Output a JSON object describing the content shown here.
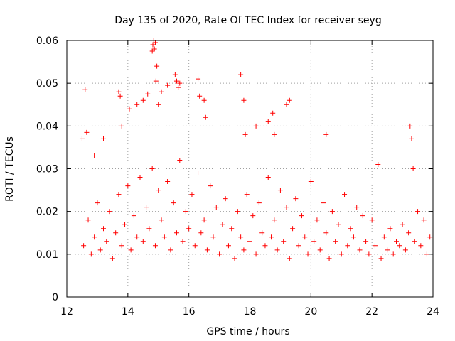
{
  "chart_data": {
    "type": "scatter",
    "title": "Day 135 of 2020, Rate Of TEC Index for receiver seyg",
    "xlabel": "GPS time / hours",
    "ylabel": "ROTI / TECUs",
    "xlim": [
      12,
      24
    ],
    "ylim": [
      0,
      0.06
    ],
    "x_ticks": [
      "12",
      "14",
      "16",
      "18",
      "20",
      "22",
      "24"
    ],
    "y_ticks": [
      "0",
      "0.01",
      "0.02",
      "0.03",
      "0.04",
      "0.05",
      "0.06"
    ],
    "grid": true,
    "marker": "plus",
    "point_color": "#ff0000",
    "series": [
      {
        "x": [
          12.5,
          12.6,
          12.65,
          12.9,
          13.2,
          13.7,
          13.75,
          13.8,
          14.05,
          14.3,
          14.5,
          14.65,
          14.8,
          14.82,
          14.85,
          14.87,
          14.9,
          14.92,
          14.95,
          15.0,
          15.1,
          15.3,
          15.55,
          15.6,
          15.65,
          15.7,
          16.3,
          16.35,
          16.5,
          16.55,
          17.7,
          17.8,
          17.85,
          18.2,
          18.6,
          18.75,
          18.8,
          19.2,
          19.3,
          20.5,
          22.2,
          23.25,
          23.3,
          23.35,
          12.55,
          12.7,
          12.8,
          12.9,
          13.0,
          13.1,
          13.2,
          13.3,
          13.4,
          13.5,
          13.6,
          13.7,
          13.8,
          13.9,
          14.0,
          14.1,
          14.2,
          14.3,
          14.4,
          14.5,
          14.6,
          14.7,
          14.8,
          14.9,
          15.0,
          15.1,
          15.2,
          15.3,
          15.4,
          15.5,
          15.6,
          15.7,
          15.8,
          15.9,
          16.0,
          16.1,
          16.2,
          16.3,
          16.4,
          16.5,
          16.6,
          16.7,
          16.8,
          16.9,
          17.0,
          17.1,
          17.2,
          17.3,
          17.4,
          17.5,
          17.6,
          17.7,
          17.8,
          17.9,
          18.0,
          18.1,
          18.2,
          18.3,
          18.4,
          18.5,
          18.6,
          18.7,
          18.8,
          18.9,
          19.0,
          19.1,
          19.2,
          19.3,
          19.4,
          19.5,
          19.6,
          19.7,
          19.8,
          19.9,
          20.0,
          20.1,
          20.2,
          20.3,
          20.4,
          20.5,
          20.6,
          20.7,
          20.8,
          20.9,
          21.0,
          21.1,
          21.2,
          21.3,
          21.4,
          21.5,
          21.6,
          21.7,
          21.8,
          21.9,
          22.0,
          22.1,
          22.3,
          22.4,
          22.5,
          22.6,
          22.7,
          22.8,
          22.9,
          23.0,
          23.1,
          23.2,
          23.4,
          23.5,
          23.6,
          23.7,
          23.8,
          23.9
        ],
        "y": [
          0.037,
          0.0485,
          0.0385,
          0.033,
          0.037,
          0.048,
          0.047,
          0.04,
          0.044,
          0.045,
          0.046,
          0.0475,
          0.0575,
          0.059,
          0.06,
          0.058,
          0.0595,
          0.0505,
          0.054,
          0.045,
          0.048,
          0.0495,
          0.052,
          0.0505,
          0.049,
          0.05,
          0.051,
          0.047,
          0.046,
          0.042,
          0.052,
          0.046,
          0.038,
          0.04,
          0.041,
          0.043,
          0.038,
          0.045,
          0.046,
          0.038,
          0.031,
          0.04,
          0.037,
          0.03,
          0.012,
          0.018,
          0.01,
          0.014,
          0.022,
          0.011,
          0.016,
          0.013,
          0.02,
          0.009,
          0.015,
          0.024,
          0.012,
          0.017,
          0.026,
          0.011,
          0.019,
          0.014,
          0.028,
          0.013,
          0.021,
          0.016,
          0.03,
          0.012,
          0.025,
          0.018,
          0.014,
          0.027,
          0.011,
          0.022,
          0.015,
          0.032,
          0.013,
          0.02,
          0.016,
          0.024,
          0.012,
          0.029,
          0.015,
          0.018,
          0.011,
          0.026,
          0.014,
          0.021,
          0.01,
          0.017,
          0.023,
          0.012,
          0.016,
          0.009,
          0.02,
          0.014,
          0.011,
          0.024,
          0.013,
          0.019,
          0.01,
          0.022,
          0.015,
          0.012,
          0.028,
          0.014,
          0.018,
          0.011,
          0.025,
          0.013,
          0.021,
          0.009,
          0.016,
          0.023,
          0.012,
          0.019,
          0.014,
          0.01,
          0.027,
          0.013,
          0.018,
          0.011,
          0.022,
          0.015,
          0.009,
          0.02,
          0.013,
          0.017,
          0.01,
          0.024,
          0.012,
          0.016,
          0.014,
          0.021,
          0.011,
          0.019,
          0.013,
          0.01,
          0.018,
          0.012,
          0.009,
          0.014,
          0.011,
          0.016,
          0.01,
          0.013,
          0.012,
          0.017,
          0.011,
          0.015,
          0.013,
          0.02,
          0.012,
          0.018,
          0.01,
          0.014
        ]
      }
    ]
  }
}
